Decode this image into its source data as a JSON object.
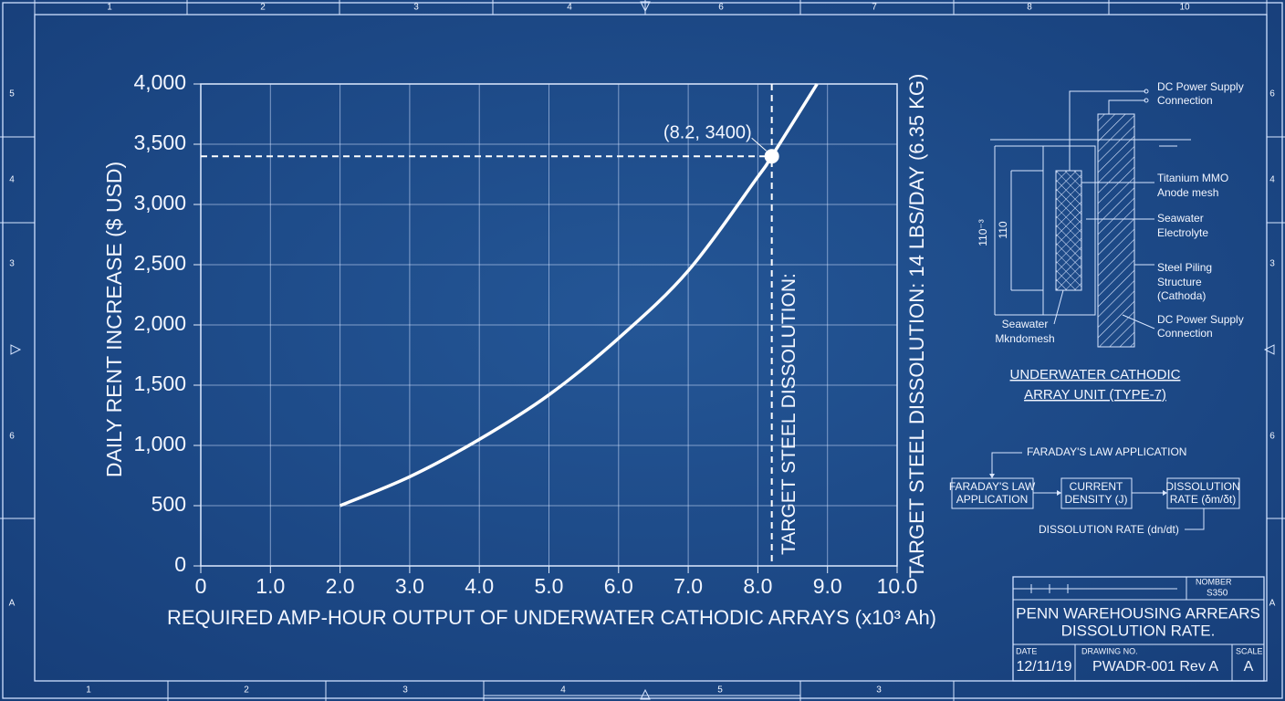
{
  "chart_data": {
    "type": "line",
    "y_label": "DAILY RENT INCREASE ($ USD)",
    "x_label": "REQUIRED AMP-HOUR OUTPUT OF UNDERWATER CATHODIC ARRAYS (x10³ Ah)",
    "side_label": "TARGET STEEL DISSOLUTION: 14 LBS/DAY (6.35 KG)",
    "x": [
      2,
      3,
      4,
      5,
      6,
      7,
      8,
      8.2,
      8.85
    ],
    "series": [
      {
        "color": "#ffffff",
        "values": [
          500,
          740,
          1050,
          1420,
          1890,
          2450,
          3230,
          3400,
          4000
        ]
      }
    ],
    "annotations": [
      {
        "text": "(8.2, 3400)",
        "x": 8.2,
        "y": 3400,
        "line_label": "TARGET STEEL DISSOLUTION:"
      }
    ],
    "xlim": [
      0,
      10
    ],
    "xticks": [
      0,
      {
        "value": 1,
        "label": "1.0"
      },
      {
        "value": 2,
        "label": "2.0"
      },
      {
        "value": 3,
        "label": "3.0"
      },
      {
        "value": 4,
        "label": "4.0"
      },
      {
        "value": 5,
        "label": "5.0"
      },
      {
        "value": 6,
        "label": "6.0"
      },
      {
        "value": 7,
        "label": "7.0"
      },
      {
        "value": 8,
        "label": "8.0"
      },
      {
        "value": 9,
        "label": "9.0"
      },
      {
        "value": 10,
        "label": "10.0"
      }
    ],
    "ylim": [
      0,
      4000
    ],
    "yticks": [
      0,
      500,
      {
        "value": 1000,
        "label": "1,000"
      },
      {
        "value": 1500,
        "label": "1,500"
      },
      {
        "value": 2000,
        "label": "2,000"
      },
      {
        "value": 2500,
        "label": "2,500"
      },
      {
        "value": 3000,
        "label": "3,000"
      },
      {
        "value": 3500,
        "label": "3,500"
      },
      {
        "value": 4000,
        "label": "4,000"
      }
    ],
    "grid": true
  },
  "border": {
    "top": [
      "1",
      "2",
      "3",
      "4",
      "6",
      "7",
      "8",
      "10"
    ],
    "bottom": [
      "1",
      "2",
      "3",
      "4",
      "5",
      "3"
    ],
    "left": [
      "5",
      "4",
      "3",
      "6",
      "A"
    ],
    "right": [
      "6",
      "4",
      "3",
      "6",
      "A"
    ]
  },
  "diagram": {
    "labels": [
      [
        "DC Power Supply",
        "Connection"
      ],
      [
        "Titanium MMO",
        "Anode mesh"
      ],
      [
        "Seawater",
        "Electrolyte"
      ],
      [
        "Steel Piling",
        "Structure",
        "(Cathoda)"
      ],
      [
        "DC Power Supply",
        "Connection"
      ]
    ],
    "bottom_label": [
      "Seawater",
      "Mkndomesh"
    ],
    "dims": [
      "110⁻³",
      "110"
    ],
    "caption": [
      "UNDERWATER CATHODIC",
      "ARRAY UNIT (TYPE-7)"
    ]
  },
  "flow": {
    "top_note": "FARADAY'S LAW APPLICATION",
    "boxes": [
      [
        "FARADAY'S LAW",
        "APPLICATION"
      ],
      [
        "CURRENT",
        "DENSITY (J)"
      ],
      [
        "DISSOLUTION",
        "RATE (δm/δt)"
      ]
    ],
    "bottom_note": "DISSOLUTION RATE (dn/dt)"
  },
  "title_block": {
    "number_label": "NOMBER",
    "number": "S350",
    "title": [
      "PENN WAREHOUSING ARREARS",
      "DISSOLUTION RATE."
    ],
    "date_label": "DATE",
    "date": "12/11/19",
    "drawing_label": "DRAWING NO.",
    "drawing": "PWADR-001 Rev A",
    "scale_label": "SCALE",
    "scale": "A"
  }
}
